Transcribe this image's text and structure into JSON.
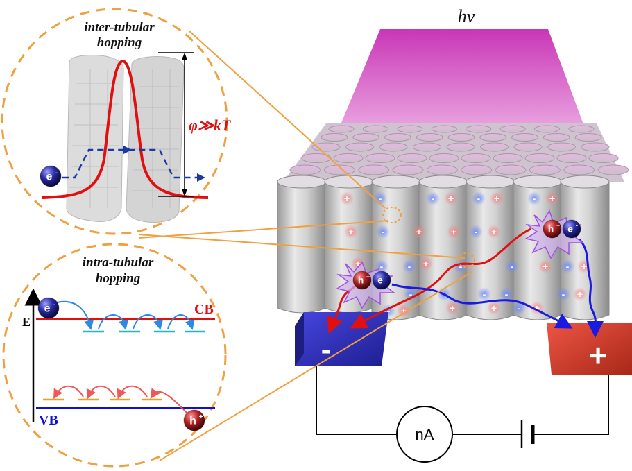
{
  "photon_label": "hv",
  "inter_tubular": {
    "title_line1": "inter-tubular",
    "title_line2": "hopping",
    "barrier_label": "φ≫kT"
  },
  "intra_tubular": {
    "title_line1": "intra-tubular",
    "title_line2": "hopping",
    "energy_axis_label": "E",
    "cb_label": "CB",
    "vb_label": "VB"
  },
  "carriers": {
    "electron": "e",
    "hole": "h",
    "electron_charge": "-",
    "hole_charge": "+"
  },
  "electrodes": {
    "negative_sign": "-",
    "positive_sign": "+"
  },
  "circuit": {
    "ammeter_label": "nA"
  },
  "colors": {
    "beam_magenta": "#c936b7",
    "circle_orange": "#f0a040",
    "cb_red": "#e01010",
    "vb_blue": "#1010d0",
    "electron_blue": "#1a1a8a",
    "hole_red": "#8a1010",
    "electrode_neg": "#3232c8",
    "electrode_pos": "#d83a2a"
  }
}
